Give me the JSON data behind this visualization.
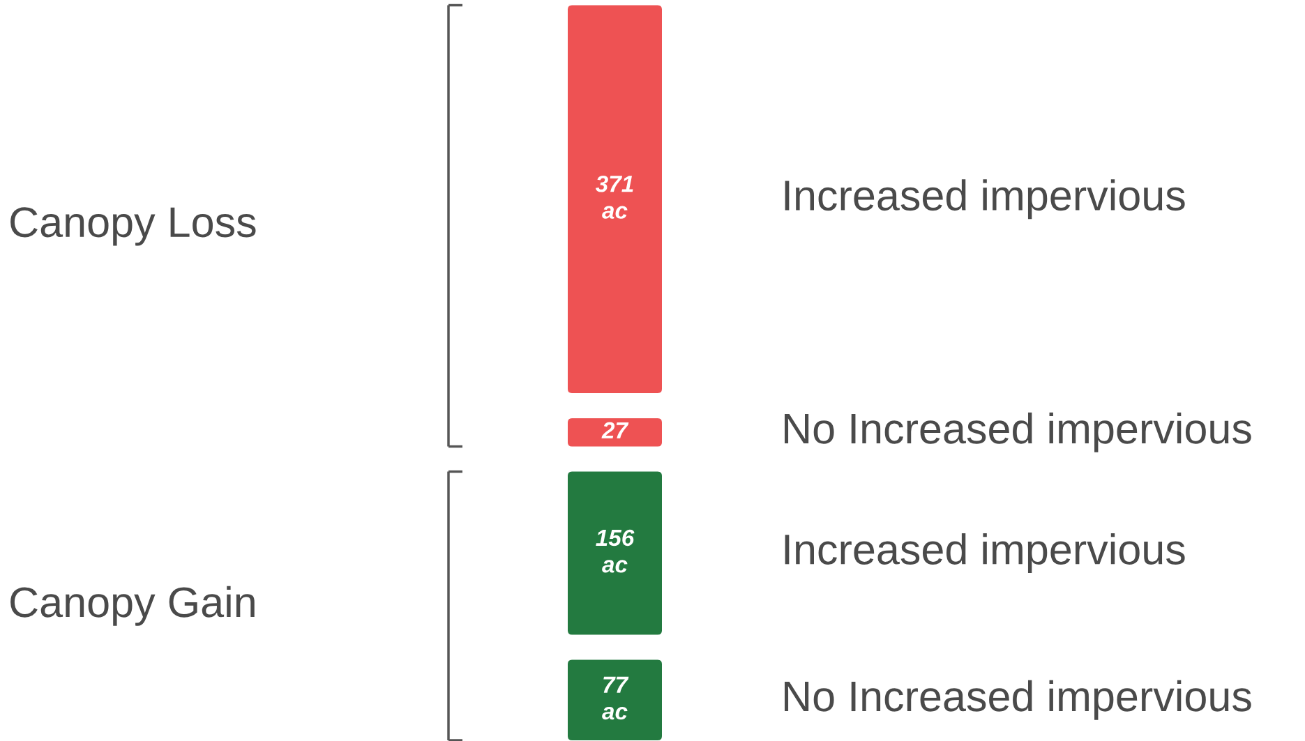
{
  "chart_data": {
    "type": "other",
    "categories": [
      "Increased impervious",
      "No Increased impervious"
    ],
    "series": [
      {
        "color": "#ee5253",
        "values": [
          371,
          27
        ],
        "value_labels": [
          "371\nac",
          "27"
        ]
      },
      {
        "color": "#237a40",
        "values": [
          156,
          77
        ],
        "value_labels": [
          "156\nac",
          "77\nac"
        ]
      }
    ],
    "annotations": [
      "Canopy Loss",
      "Canopy Gain"
    ]
  }
}
